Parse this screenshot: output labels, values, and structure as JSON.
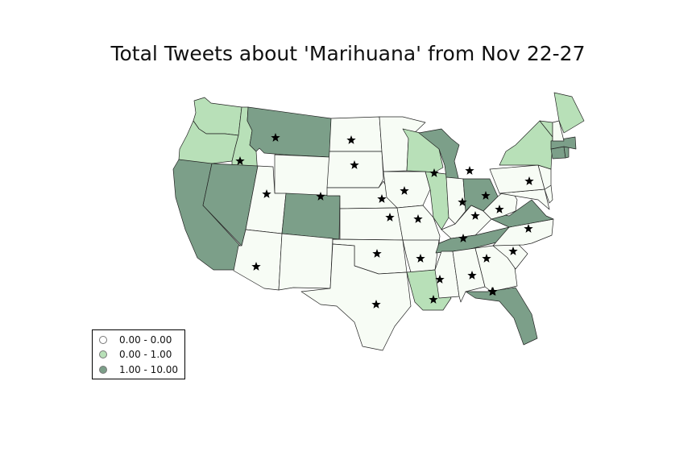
{
  "title": "Total Tweets about 'Marihuana' from Nov 22-27",
  "colors": {
    "bin0": "#f7fcf5",
    "bin1": "#b8e0b8",
    "bin2": "#7c9f89",
    "stroke": "#222222",
    "star": "#000000"
  },
  "legend": [
    {
      "label": "0.00 - 0.00",
      "color": "#ffffff"
    },
    {
      "label": "0.00 - 1.00",
      "color": "#b8e0b8"
    },
    {
      "label": "1.00 - 10.00",
      "color": "#7c9f89"
    }
  ],
  "map": {
    "region": "Contiguous United States",
    "states": {
      "WA": 1,
      "OR": 1,
      "ID": 1,
      "MT": 2,
      "WY": 0,
      "CA": 2,
      "NV": 2,
      "UT": 0,
      "AZ": 0,
      "CO": 2,
      "NM": 0,
      "ND": 0,
      "SD": 0,
      "NE": 0,
      "KS": 0,
      "OK": 0,
      "TX": 0,
      "MN": 0,
      "IA": 0,
      "MO": 0,
      "AR": 0,
      "LA": 1,
      "WI": 1,
      "IL": 1,
      "MI": 2,
      "IN": 0,
      "OH": 2,
      "KY": 0,
      "TN": 2,
      "MS": 0,
      "AL": 0,
      "GA": 0,
      "FL": 2,
      "SC": 0,
      "NC": 0,
      "VA": 2,
      "WV": 0,
      "MD": 0,
      "DE": 0,
      "NJ": 0,
      "PA": 0,
      "NY": 1,
      "CT": 2,
      "RI": 2,
      "MA": 2,
      "VT": 1,
      "NH": 0,
      "ME": 1
    },
    "star_markers": [
      "MT",
      "ID",
      "ND",
      "SD",
      "UT",
      "CO",
      "NE",
      "IA",
      "WI",
      "MI",
      "OH",
      "IN",
      "KS",
      "MO",
      "KY",
      "WV",
      "PA",
      "VA",
      "TN",
      "NC",
      "SC",
      "AZ",
      "OK",
      "AR",
      "MS",
      "AL",
      "GA",
      "LA",
      "TX",
      "FL"
    ]
  }
}
